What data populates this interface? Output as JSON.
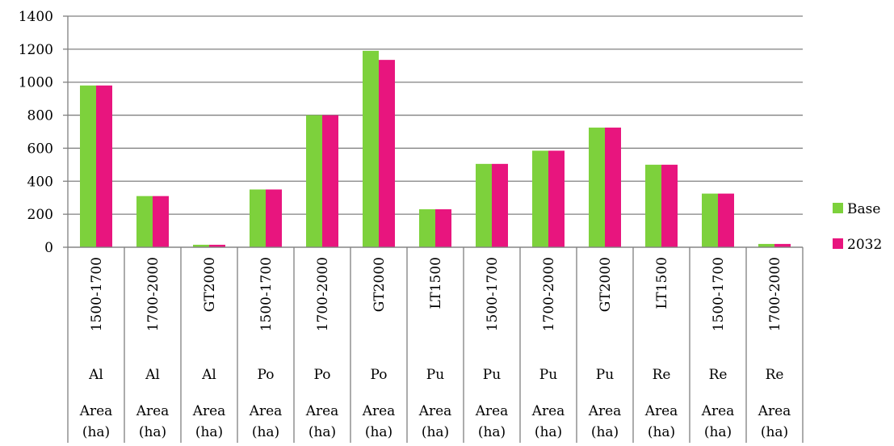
{
  "chart_data": {
    "type": "bar",
    "title": "",
    "xlabel": "",
    "ylabel": "",
    "ylim": [
      0,
      1400
    ],
    "yticks": [
      0,
      200,
      400,
      600,
      800,
      1000,
      1200,
      1400
    ],
    "grid": true,
    "legend_position": "right",
    "categories": [
      {
        "range": "1500-1700",
        "group": "Al",
        "measure": [
          "Area",
          "(ha)"
        ]
      },
      {
        "range": "1700-2000",
        "group": "Al",
        "measure": [
          "Area",
          "(ha)"
        ]
      },
      {
        "range": "GT2000",
        "group": "Al",
        "measure": [
          "Area",
          "(ha)"
        ]
      },
      {
        "range": "1500-1700",
        "group": "Po",
        "measure": [
          "Area",
          "(ha)"
        ]
      },
      {
        "range": "1700-2000",
        "group": "Po",
        "measure": [
          "Area",
          "(ha)"
        ]
      },
      {
        "range": "GT2000",
        "group": "Po",
        "measure": [
          "Area",
          "(ha)"
        ]
      },
      {
        "range": "LT1500",
        "group": "Pu",
        "measure": [
          "Area",
          "(ha)"
        ]
      },
      {
        "range": "1500-1700",
        "group": "Pu",
        "measure": [
          "Area",
          "(ha)"
        ]
      },
      {
        "range": "1700-2000",
        "group": "Pu",
        "measure": [
          "Area",
          "(ha)"
        ]
      },
      {
        "range": "GT2000",
        "group": "Pu",
        "measure": [
          "Area",
          "(ha)"
        ]
      },
      {
        "range": "LT1500",
        "group": "Re",
        "measure": [
          "Area",
          "(ha)"
        ]
      },
      {
        "range": "1500-1700",
        "group": "Re",
        "measure": [
          "Area",
          "(ha)"
        ]
      },
      {
        "range": "1700-2000",
        "group": "Re",
        "measure": [
          "Area",
          "(ha)"
        ]
      }
    ],
    "series": [
      {
        "name": "Base",
        "color": "#7dd13c",
        "values": [
          980,
          310,
          15,
          350,
          800,
          1190,
          230,
          505,
          585,
          725,
          500,
          325,
          20
        ]
      },
      {
        "name": "2032",
        "color": "#e8157e",
        "values": [
          980,
          310,
          15,
          350,
          800,
          1135,
          230,
          505,
          585,
          725,
          500,
          325,
          20
        ]
      }
    ]
  }
}
